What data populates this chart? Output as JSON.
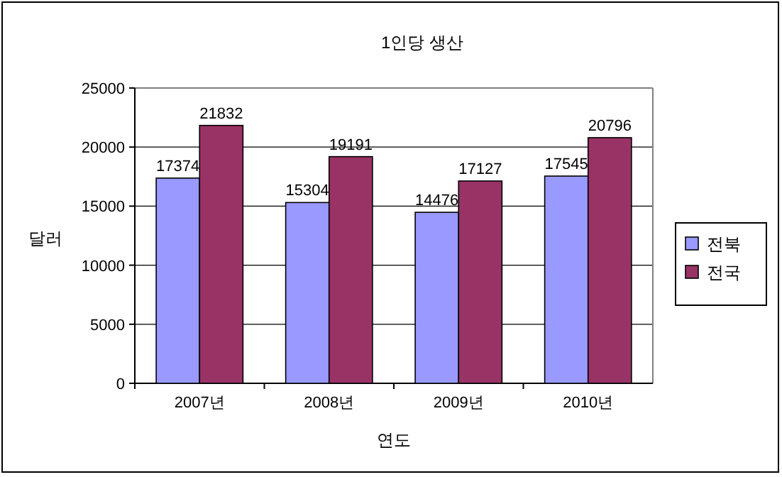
{
  "chart_data": {
    "type": "bar",
    "title": "1인당 생산",
    "xlabel": "연도",
    "ylabel": "달러",
    "categories": [
      "2007년",
      "2008년",
      "2009년",
      "2010년"
    ],
    "series": [
      {
        "name": "전북",
        "color": "#9999ff",
        "values": [
          17374,
          15304,
          14476,
          17545
        ]
      },
      {
        "name": "전국",
        "color": "#993366",
        "values": [
          21832,
          19191,
          17127,
          20796
        ]
      }
    ],
    "ylim": [
      0,
      25000
    ],
    "yticks": [
      0,
      5000,
      10000,
      15000,
      20000,
      25000
    ],
    "grid": "y",
    "legend": "right",
    "data_labels": true
  }
}
